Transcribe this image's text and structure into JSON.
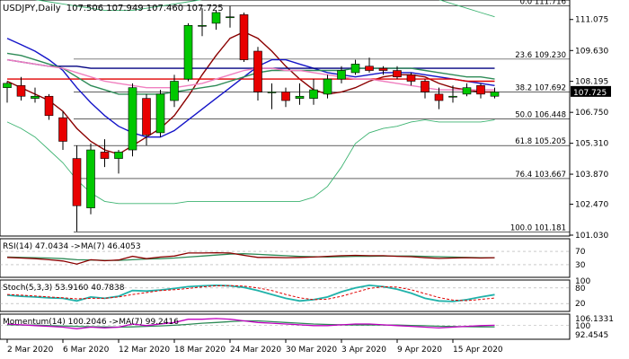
{
  "header": {
    "symbol": "USDJPY,Daily",
    "ohlc": "107.506 107.949 107.460 107.725"
  },
  "price_axis": {
    "ticks": [
      "111.075",
      "109.630",
      "108.195",
      "106.750",
      "105.310",
      "103.870",
      "102.470",
      "101.030"
    ],
    "current_price": "107.725"
  },
  "fibonacci": [
    {
      "label": "0.0 111.716",
      "price": 111.716
    },
    {
      "label": "23.6 109.230",
      "price": 109.23
    },
    {
      "label": "38.2 107.692",
      "price": 107.692
    },
    {
      "label": "50.0 106.448",
      "price": 106.448
    },
    {
      "label": "61.8 105.205",
      "price": 105.205
    },
    {
      "label": "76.4 103.667",
      "price": 103.667
    },
    {
      "label": "100.0 101.181",
      "price": 101.181
    }
  ],
  "x_axis": {
    "labels": [
      {
        "label": "2 Mar 2020",
        "index": 0
      },
      {
        "label": "6 Mar 2020",
        "index": 4
      },
      {
        "label": "12 Mar 2020",
        "index": 8
      },
      {
        "label": "18 Mar 2020",
        "index": 12
      },
      {
        "label": "24 Mar 2020",
        "index": 16
      },
      {
        "label": "30 Mar 2020",
        "index": 20
      },
      {
        "label": "3 Apr 2020",
        "index": 24
      },
      {
        "label": "9 Apr 2020",
        "index": 28
      },
      {
        "label": "15 Apr 2020",
        "index": 32
      }
    ]
  },
  "panels": {
    "rsi": {
      "label": "RSI(14) 47.0434  ->MA(7) 46.4053",
      "ticks": [
        "70",
        "30"
      ]
    },
    "stoch": {
      "label": "Stoch(5,3,3) 53.9160 40.7838",
      "ticks": [
        "80",
        "20"
      ],
      "extra_tick": "100"
    },
    "momentum": {
      "label": "Momentum(14) 100.2046  ->MA(7) 99.2416",
      "ticks": [
        "106.1331",
        "100",
        "92.4545"
      ]
    }
  },
  "colors": {
    "bull": "#00c800",
    "bear": "#e80000",
    "ma_blue": "#1414c8",
    "ma_darkred": "#8b0000",
    "ma_green": "#2e8b57",
    "ma_navy": "#000080",
    "ma_red": "#e00000",
    "ma_pink": "#f080c0",
    "bollinger": "#3cb371",
    "stoch_main": "#20b2aa",
    "stoch_signal": "#e00000",
    "momentum_main": "#c000c0",
    "rsi_main": "#8b0000",
    "rsi_ma": "#2e8b57"
  },
  "chart_data": {
    "type": "candlestick",
    "title": "USDJPY,Daily",
    "ylim": [
      101.03,
      111.9
    ],
    "dates": [
      "2 Mar",
      "3 Mar",
      "4 Mar",
      "5 Mar",
      "6 Mar",
      "9 Mar",
      "10 Mar",
      "11 Mar",
      "12 Mar",
      "13 Mar",
      "16 Mar",
      "17 Mar",
      "18 Mar",
      "19 Mar",
      "20 Mar",
      "23 Mar",
      "24 Mar",
      "25 Mar",
      "26 Mar",
      "27 Mar",
      "30 Mar",
      "31 Mar",
      "1 Apr",
      "2 Apr",
      "3 Apr",
      "6 Apr",
      "7 Apr",
      "8 Apr",
      "9 Apr",
      "10 Apr",
      "13 Apr",
      "14 Apr",
      "15 Apr",
      "16 Apr",
      "17 Apr",
      "20 Apr"
    ],
    "candles": [
      {
        "o": 107.9,
        "h": 108.2,
        "l": 107.2,
        "c": 108.1
      },
      {
        "o": 108.0,
        "h": 108.4,
        "l": 107.3,
        "c": 107.5
      },
      {
        "o": 107.4,
        "h": 107.9,
        "l": 107.2,
        "c": 107.5
      },
      {
        "o": 107.5,
        "h": 107.6,
        "l": 106.4,
        "c": 106.6
      },
      {
        "o": 106.5,
        "h": 106.8,
        "l": 105.0,
        "c": 105.4
      },
      {
        "o": 104.6,
        "h": 105.2,
        "l": 101.2,
        "c": 102.4
      },
      {
        "o": 102.3,
        "h": 105.3,
        "l": 102.0,
        "c": 105.0
      },
      {
        "o": 104.9,
        "h": 105.5,
        "l": 104.2,
        "c": 104.6
      },
      {
        "o": 104.6,
        "h": 105.0,
        "l": 103.9,
        "c": 104.9
      },
      {
        "o": 105.0,
        "h": 108.1,
        "l": 104.7,
        "c": 107.9
      },
      {
        "o": 107.4,
        "h": 107.6,
        "l": 105.2,
        "c": 105.7
      },
      {
        "o": 105.8,
        "h": 107.8,
        "l": 105.6,
        "c": 107.6
      },
      {
        "o": 107.3,
        "h": 108.5,
        "l": 107.0,
        "c": 108.2
      },
      {
        "o": 108.3,
        "h": 110.9,
        "l": 108.2,
        "c": 110.8
      },
      {
        "o": 110.8,
        "h": 111.6,
        "l": 110.3,
        "c": 110.8
      },
      {
        "o": 110.9,
        "h": 111.5,
        "l": 110.6,
        "c": 111.4
      },
      {
        "o": 111.2,
        "h": 111.7,
        "l": 110.7,
        "c": 111.2
      },
      {
        "o": 111.3,
        "h": 111.4,
        "l": 109.1,
        "c": 109.2
      },
      {
        "o": 109.6,
        "h": 109.8,
        "l": 107.3,
        "c": 107.7
      },
      {
        "o": 107.7,
        "h": 108.1,
        "l": 106.9,
        "c": 107.7
      },
      {
        "o": 107.7,
        "h": 107.9,
        "l": 107.0,
        "c": 107.3
      },
      {
        "o": 107.4,
        "h": 108.1,
        "l": 107.1,
        "c": 107.5
      },
      {
        "o": 107.4,
        "h": 108.3,
        "l": 107.1,
        "c": 107.8
      },
      {
        "o": 107.6,
        "h": 108.5,
        "l": 107.4,
        "c": 108.3
      },
      {
        "o": 108.3,
        "h": 108.9,
        "l": 108.1,
        "c": 108.7
      },
      {
        "o": 108.6,
        "h": 109.2,
        "l": 108.5,
        "c": 109.0
      },
      {
        "o": 108.9,
        "h": 109.3,
        "l": 108.6,
        "c": 108.7
      },
      {
        "o": 108.8,
        "h": 108.9,
        "l": 108.5,
        "c": 108.7
      },
      {
        "o": 108.7,
        "h": 108.9,
        "l": 108.3,
        "c": 108.4
      },
      {
        "o": 108.5,
        "h": 108.6,
        "l": 108.0,
        "c": 108.2
      },
      {
        "o": 108.2,
        "h": 108.3,
        "l": 107.4,
        "c": 107.7
      },
      {
        "o": 107.6,
        "h": 107.9,
        "l": 106.9,
        "c": 107.3
      },
      {
        "o": 107.5,
        "h": 108.0,
        "l": 107.2,
        "c": 107.5
      },
      {
        "o": 107.6,
        "h": 108.1,
        "l": 107.5,
        "c": 107.9
      },
      {
        "o": 108.0,
        "h": 108.1,
        "l": 107.4,
        "c": 107.6
      },
      {
        "o": 107.5,
        "h": 107.9,
        "l": 107.4,
        "c": 107.7
      }
    ],
    "series": [
      {
        "color_key": "ma_darkred",
        "values": [
          108.2,
          107.9,
          107.6,
          107.3,
          106.8,
          106.0,
          105.4,
          105.0,
          104.8,
          105.2,
          105.6,
          106.0,
          106.6,
          107.5,
          108.5,
          109.4,
          110.2,
          110.5,
          110.2,
          109.6,
          108.9,
          108.3,
          107.8,
          107.6,
          107.7,
          107.9,
          108.2,
          108.4,
          108.5,
          108.5,
          108.4,
          108.1,
          107.9,
          107.8,
          107.7,
          107.7
        ]
      },
      {
        "color_key": "ma_blue",
        "values": [
          110.2,
          109.9,
          109.6,
          109.2,
          108.7,
          107.9,
          107.2,
          106.6,
          106.1,
          105.8,
          105.6,
          105.6,
          105.9,
          106.4,
          106.9,
          107.4,
          107.9,
          108.4,
          108.9,
          109.2,
          109.2,
          109.0,
          108.8,
          108.6,
          108.5,
          108.4,
          108.5,
          108.6,
          108.6,
          108.6,
          108.5,
          108.4,
          108.3,
          108.2,
          108.1,
          108.0
        ]
      },
      {
        "color_key": "ma_navy",
        "values": [
          109.2,
          109.1,
          109.0,
          108.9,
          108.9,
          108.9,
          108.8,
          108.8,
          108.8,
          108.8,
          108.8,
          108.8,
          108.8,
          108.8,
          108.8,
          108.8,
          108.8,
          108.8,
          108.8,
          108.8,
          108.8,
          108.8,
          108.8,
          108.8,
          108.8,
          108.8,
          108.8,
          108.8,
          108.8,
          108.8,
          108.8,
          108.8,
          108.8,
          108.8,
          108.8,
          108.8
        ]
      },
      {
        "color_key": "ma_red",
        "values": [
          108.3,
          108.3,
          108.3,
          108.3,
          108.3,
          108.3,
          108.3,
          108.3,
          108.3,
          108.3,
          108.3,
          108.3,
          108.3,
          108.3,
          108.3,
          108.3,
          108.3,
          108.3,
          108.3,
          108.3,
          108.3,
          108.3,
          108.3,
          108.3,
          108.3,
          108.3,
          108.3,
          108.3,
          108.3,
          108.3,
          108.3,
          108.3,
          108.3,
          108.2,
          108.2,
          108.2
        ]
      },
      {
        "color_key": "ma_green",
        "values": [
          109.5,
          109.4,
          109.2,
          109.0,
          108.8,
          108.4,
          108.0,
          107.8,
          107.6,
          107.6,
          107.6,
          107.6,
          107.7,
          107.8,
          107.9,
          108.0,
          108.2,
          108.4,
          108.6,
          108.7,
          108.7,
          108.7,
          108.7,
          108.7,
          108.7,
          108.8,
          108.8,
          108.8,
          108.8,
          108.8,
          108.7,
          108.6,
          108.5,
          108.4,
          108.4,
          108.3
        ]
      },
      {
        "color_key": "ma_pink",
        "values": [
          109.2,
          109.1,
          109.0,
          108.9,
          108.8,
          108.6,
          108.4,
          108.2,
          108.1,
          108.0,
          107.9,
          107.9,
          107.9,
          108.0,
          108.1,
          108.3,
          108.5,
          108.7,
          108.8,
          108.8,
          108.7,
          108.7,
          108.6,
          108.5,
          108.4,
          108.3,
          108.3,
          108.2,
          108.1,
          108.0,
          107.9,
          107.8,
          107.8,
          107.8,
          107.8,
          107.8
        ]
      },
      {
        "color_key": "bollinger",
        "values": [
          112.2,
          112.1,
          112.0,
          111.9,
          111.8,
          111.7,
          111.6,
          111.5,
          111.5,
          111.5,
          111.6,
          111.7,
          111.8,
          111.9,
          112.0,
          112.1,
          112.2,
          112.2,
          112.2,
          112.1,
          112.0,
          112.0,
          112.0,
          112.0,
          112.0,
          112.0,
          112.0,
          112.0,
          112.0,
          112.0,
          112.0,
          112.0,
          111.8,
          111.6,
          111.4,
          111.2
        ]
      },
      {
        "color_key": "bollinger",
        "values": [
          106.3,
          106.0,
          105.6,
          105.0,
          104.4,
          103.6,
          103.0,
          102.6,
          102.5,
          102.5,
          102.5,
          102.5,
          102.5,
          102.6,
          102.6,
          102.6,
          102.6,
          102.6,
          102.6,
          102.6,
          102.6,
          102.6,
          102.8,
          103.3,
          104.2,
          105.3,
          105.8,
          106.0,
          106.1,
          106.3,
          106.4,
          106.3,
          106.3,
          106.3,
          106.3,
          106.4
        ]
      }
    ],
    "rsi": {
      "main": [
        52,
        50,
        48,
        45,
        41,
        32,
        45,
        42,
        44,
        55,
        48,
        53,
        56,
        65,
        65,
        66,
        65,
        58,
        52,
        52,
        51,
        52,
        53,
        55,
        57,
        58,
        57,
        57,
        55,
        54,
        51,
        49,
        50,
        51,
        50,
        51
      ],
      "ma": [
        53,
        52,
        51,
        50,
        48,
        45,
        44,
        43,
        43,
        45,
        47,
        48,
        50,
        53,
        56,
        59,
        62,
        63,
        61,
        59,
        57,
        55,
        54,
        53,
        54,
        55,
        55,
        56,
        56,
        56,
        55,
        54,
        53,
        52,
        51,
        51
      ]
    },
    "stoch": {
      "main": [
        52,
        48,
        45,
        42,
        40,
        30,
        45,
        40,
        48,
        70,
        68,
        72,
        78,
        85,
        88,
        90,
        88,
        82,
        70,
        55,
        40,
        30,
        35,
        45,
        65,
        80,
        90,
        85,
        75,
        60,
        40,
        30,
        28,
        35,
        45,
        54
      ],
      "signal": [
        55,
        52,
        49,
        45,
        42,
        38,
        40,
        40,
        45,
        55,
        62,
        70,
        73,
        78,
        84,
        88,
        89,
        87,
        80,
        70,
        55,
        42,
        35,
        37,
        48,
        63,
        78,
        85,
        83,
        73,
        58,
        43,
        33,
        31,
        36,
        41
      ]
    },
    "momentum": {
      "main": [
        101,
        100.5,
        100,
        99.5,
        99,
        98,
        99,
        98.5,
        99,
        101,
        100,
        101,
        102,
        104,
        104,
        104.5,
        104,
        103,
        102,
        101.5,
        101,
        100.5,
        100,
        100,
        100.5,
        101,
        101,
        100.5,
        100,
        99.5,
        99,
        98.5,
        99,
        99.5,
        100,
        100.2
      ],
      "ma": [
        100.5,
        100.4,
        100.3,
        100,
        99.8,
        99.5,
        99.3,
        99.1,
        99,
        99.2,
        99.5,
        99.8,
        100.2,
        100.8,
        101.5,
        102,
        102.5,
        103,
        103,
        102.5,
        102,
        101.5,
        101,
        100.7,
        100.5,
        100.4,
        100.4,
        100.4,
        100.3,
        100.1,
        99.9,
        99.6,
        99.4,
        99.3,
        99.2,
        99.2
      ]
    }
  }
}
